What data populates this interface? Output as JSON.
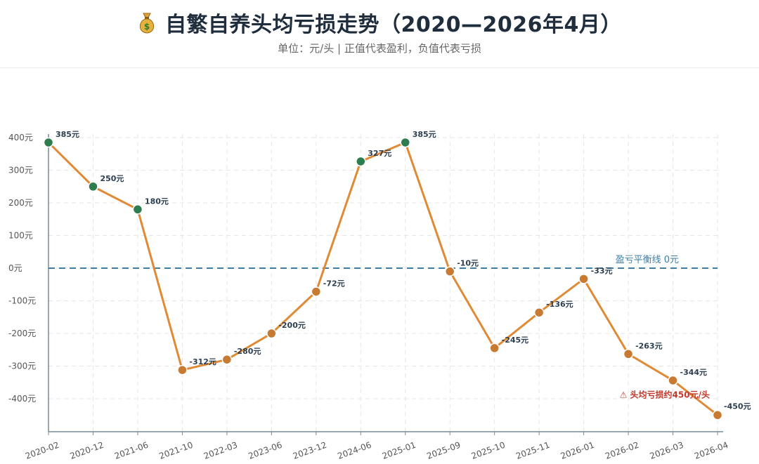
{
  "header": {
    "title": "自繁自养头均亏损走势（2020—2026年4月）",
    "subtitle": "单位：元/头 | 正值代表盈利，负值代表亏损",
    "icon": "money-bag-icon"
  },
  "colors": {
    "line": "#e08a35",
    "profit_point": "#2e7d4f",
    "loss_point": "#c97a32",
    "reference_line": "#3d7ea6",
    "warning": "#c0392b"
  },
  "chart_data": {
    "type": "line",
    "title": "自繁自养头均亏损走势（2020—2026年4月）",
    "subtitle": "单位：元/头 | 正值代表盈利，负值代表亏损",
    "categories": [
      "2020-02",
      "2020-12",
      "2021-06",
      "2021-10",
      "2022-03",
      "2023-06",
      "2023-12",
      "2024-06",
      "2025-01",
      "2025-09",
      "2025-10",
      "2025-11",
      "2026-01",
      "2026-02",
      "2026-03",
      "2026-04"
    ],
    "values": [
      385,
      250,
      180,
      -312,
      -280,
      -200,
      -72,
      327,
      385,
      -10,
      -245,
      -136,
      -33,
      -263,
      -344,
      -450
    ],
    "data_labels": [
      "385元",
      "250元",
      "180元",
      "-312元",
      "-280元",
      "-200元",
      "-72元",
      "327元",
      "385元",
      "-10元",
      "-245元",
      "-136元",
      "-33元",
      "-263元",
      "-344元",
      "-450元"
    ],
    "yticks": [
      400,
      300,
      200,
      100,
      0,
      -100,
      -200,
      -300,
      -400
    ],
    "ytick_labels": [
      "400元",
      "300元",
      "200元",
      "100元",
      "0元",
      "-100元",
      "-200元",
      "-300元",
      "-400元"
    ],
    "ylim": [
      -500,
      400
    ],
    "grid": true,
    "reference_line": {
      "value": 0,
      "label": "盈亏平衡线 0元"
    },
    "annotation": {
      "text": "⚠ 头均亏损约450元/头",
      "at": "2026-04"
    }
  }
}
